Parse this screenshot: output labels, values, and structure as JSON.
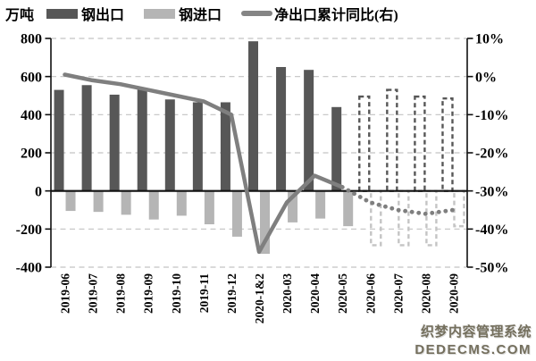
{
  "unit_label": "万吨",
  "legend": [
    {
      "label": "钢出口",
      "type": "bar",
      "color": "#575757"
    },
    {
      "label": "钢进口",
      "type": "bar",
      "color": "#b5b5b5"
    },
    {
      "label": "净出口累计同比(右)",
      "type": "line",
      "color": "#858585"
    }
  ],
  "watermark": {
    "line1": "织梦内容管理系统",
    "line2": "DEDECMS.COM"
  },
  "colors": {
    "export_bar": "#575757",
    "import_bar": "#b5b5b5",
    "forecast_import_outline": "#c4c4c4",
    "line": "#7f7f7f",
    "grid": "#c3c3c3",
    "axis": "#111111"
  },
  "chart_data": {
    "type": "bar",
    "subtype": "combo bar+line, dual axis, dashed bars and dotted line are forecasts",
    "categories": [
      "2019-06",
      "2019-07",
      "2019-08",
      "2019-09",
      "2019-10",
      "2019-11",
      "2019-12",
      "2020-1&2",
      "2020-03",
      "2020-04",
      "2020-05",
      "2020-06",
      "2020-07",
      "2020-08",
      "2020-09"
    ],
    "series": [
      {
        "name": "钢出口",
        "type": "bar",
        "axis": "left",
        "forecast_from_index": 11,
        "values": [
          530,
          555,
          505,
          540,
          480,
          465,
          465,
          785,
          650,
          635,
          440,
          495,
          530,
          495,
          485
        ]
      },
      {
        "name": "钢进口",
        "type": "bar",
        "axis": "left",
        "forecast_from_index": 11,
        "values": [
          -105,
          -110,
          -125,
          -150,
          -130,
          -175,
          -240,
          -330,
          -165,
          -145,
          -185,
          -285,
          -285,
          -285,
          -185
        ]
      },
      {
        "name": "净出口累计同比(右)",
        "type": "line",
        "axis": "right",
        "forecast_from_index": 11,
        "values": [
          0.5,
          -1,
          -2,
          -3.5,
          -5,
          -6.5,
          -10,
          -46,
          -33,
          -26,
          -29,
          -33,
          -35,
          -36,
          -35
        ]
      }
    ],
    "left_axis": {
      "label": "万吨",
      "ticks": [
        800,
        600,
        400,
        200,
        0,
        -200,
        -400
      ],
      "range": [
        -400,
        800
      ]
    },
    "right_axis": {
      "tick_labels": [
        "10%",
        "0%",
        "-10%",
        "-20%",
        "-30%",
        "-40%",
        "-50%"
      ],
      "ticks": [
        10,
        0,
        -10,
        -20,
        -30,
        -40,
        -50
      ],
      "range": [
        -50,
        10
      ]
    },
    "grid": "horizontal dashed gridlines at every tick, solid black zero line"
  }
}
